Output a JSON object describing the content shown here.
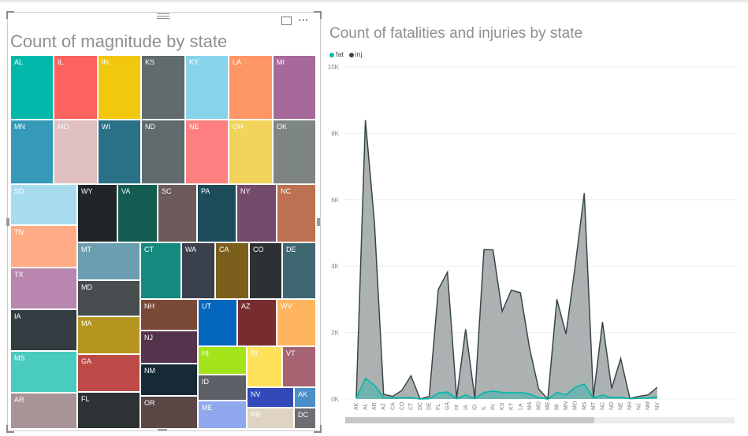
{
  "left_visual": {
    "title": "Count of magnitude by state",
    "more_options": "···",
    "tiles": [
      {
        "label": "AL",
        "color": "#01B8AA"
      },
      {
        "label": "IL",
        "color": "#FD625E"
      },
      {
        "label": "IN",
        "color": "#F2C80F"
      },
      {
        "label": "KS",
        "color": "#5F6B6D"
      },
      {
        "label": "KY",
        "color": "#8AD4EB"
      },
      {
        "label": "LA",
        "color": "#FE9666"
      },
      {
        "label": "MI",
        "color": "#A66999"
      },
      {
        "label": "MN",
        "color": "#3599B8"
      },
      {
        "label": "MO",
        "color": "#DFBFBF"
      },
      {
        "label": "WI",
        "color": "#2A7187"
      },
      {
        "label": "ND",
        "color": "#5F6B6D"
      },
      {
        "label": "NE",
        "color": "#FD7F7F"
      },
      {
        "label": "OH",
        "color": "#F2D45C"
      },
      {
        "label": "OK",
        "color": "#7E8585"
      },
      {
        "label": "SD",
        "color": "#A6DCEE"
      },
      {
        "label": "WY",
        "color": "#1F2528"
      },
      {
        "label": "VA",
        "color": "#125C52"
      },
      {
        "label": "SC",
        "color": "#6C5B5A"
      },
      {
        "label": "PA",
        "color": "#1C4B5A"
      },
      {
        "label": "NY",
        "color": "#744B6A"
      },
      {
        "label": "NC",
        "color": "#BE7052"
      },
      {
        "label": "TN",
        "color": "#FFAB86"
      },
      {
        "label": "MT",
        "color": "#6B9EB0"
      },
      {
        "label": "CT",
        "color": "#148A7F"
      },
      {
        "label": "WA",
        "color": "#3A404C"
      },
      {
        "label": "CA",
        "color": "#7A5F1C"
      },
      {
        "label": "CO",
        "color": "#2E3133"
      },
      {
        "label": "DE",
        "color": "#3F6771"
      },
      {
        "label": "TX",
        "color": "#B886AE"
      },
      {
        "label": "MD",
        "color": "#474C4E"
      },
      {
        "label": "NH",
        "color": "#7B4A37"
      },
      {
        "label": "UT",
        "color": "#0467BE"
      },
      {
        "label": "AZ",
        "color": "#772C2E"
      },
      {
        "label": "WV",
        "color": "#FFB55E"
      },
      {
        "label": "IA",
        "color": "#333D42"
      },
      {
        "label": "MA",
        "color": "#B5951F"
      },
      {
        "label": "NJ",
        "color": "#55334C"
      },
      {
        "label": "MS",
        "color": "#4ACBBF"
      },
      {
        "label": "GA",
        "color": "#BE4A48"
      },
      {
        "label": "NM",
        "color": "#162A36"
      },
      {
        "label": "HI",
        "color": "#A5E41A"
      },
      {
        "label": "RI",
        "color": "#FFE15C"
      },
      {
        "label": "VT",
        "color": "#A66473"
      },
      {
        "label": "ID",
        "color": "#5D6066"
      },
      {
        "label": "AR",
        "color": "#A89496"
      },
      {
        "label": "FL",
        "color": "#2D3335"
      },
      {
        "label": "OR",
        "color": "#5A4746"
      },
      {
        "label": "NV",
        "color": "#3349B8"
      },
      {
        "label": "AK",
        "color": "#4A8FC7"
      },
      {
        "label": "ME",
        "color": "#8FA8EE"
      },
      {
        "label": "PR",
        "color": "#DFD4C2"
      },
      {
        "label": "DC",
        "color": "#6E6E72"
      }
    ]
  },
  "right_visual": {
    "title": "Count of fatalities and injuries by state",
    "colors": {
      "fat": "#01B8AA",
      "inj": "#374649",
      "inj_fill": "#A3A8AA"
    },
    "chart_data": {
      "type": "area",
      "x": [
        "AK",
        "AL",
        "AR",
        "AZ",
        "CA",
        "CO",
        "CT",
        "DC",
        "DE",
        "FL",
        "GA",
        "HI",
        "IA",
        "ID",
        "IL",
        "IN",
        "KS",
        "KY",
        "LA",
        "MA",
        "MD",
        "ME",
        "MI",
        "MN",
        "MO",
        "MS",
        "MT",
        "NC",
        "ND",
        "NE",
        "NH",
        "NJ",
        "NM",
        "NV"
      ],
      "xtick_labels": [
        "AK",
        "AL",
        "AR",
        "AZ",
        "CA",
        "CO",
        "CT",
        "DC",
        "DE",
        "FL",
        "GA",
        "HI",
        "IA",
        "ID",
        "IL",
        "IN",
        "KS",
        "KY",
        "LA",
        "MA",
        "MD",
        "ME",
        "MI",
        "MN",
        "MO",
        "MS",
        "MT",
        "NC",
        "ND",
        "NE",
        "NH",
        "NJ",
        "NM",
        "NV"
      ],
      "series": [
        {
          "name": "fat",
          "values": [
            20,
            620,
            420,
            50,
            30,
            40,
            40,
            0,
            10,
            180,
            210,
            10,
            120,
            10,
            200,
            240,
            200,
            190,
            200,
            150,
            40,
            0,
            200,
            120,
            350,
            450,
            30,
            120,
            40,
            60,
            10,
            20,
            30,
            70
          ]
        },
        {
          "name": "inj",
          "values": [
            30,
            8400,
            5300,
            140,
            80,
            260,
            700,
            0,
            80,
            3300,
            3820,
            30,
            2100,
            20,
            4500,
            4490,
            2640,
            3280,
            3200,
            1540,
            300,
            0,
            3000,
            1960,
            4000,
            6200,
            60,
            2320,
            320,
            1220,
            20,
            80,
            120,
            350
          ]
        }
      ],
      "ylim": [
        0,
        10000
      ],
      "yticks": [
        0,
        2000,
        4000,
        6000,
        8000,
        10000
      ],
      "ytick_labels": [
        "0K",
        "2K",
        "4K",
        "6K",
        "8K",
        "10K"
      ],
      "legend_position": "top-left",
      "grid": true
    }
  }
}
